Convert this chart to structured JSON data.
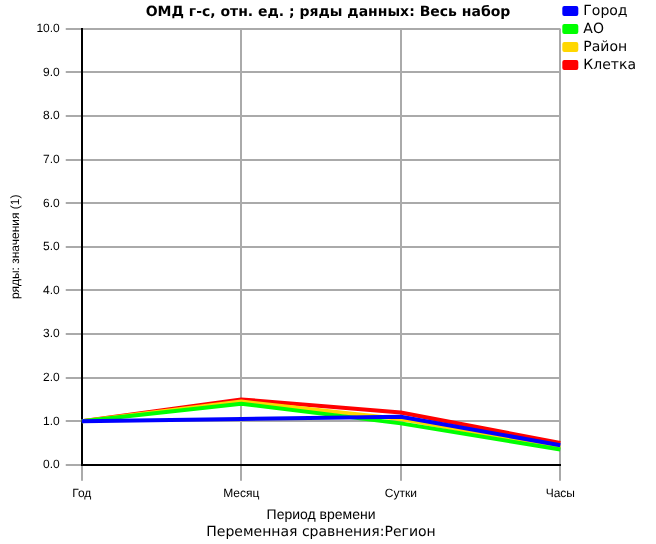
{
  "chart_data": {
    "type": "line",
    "title": "ОМД г-с, отн. ед. ; ряды данных: Весь набор",
    "xlabel": "Период времени",
    "ylabel": "ряды: значения (1)",
    "annotations": [
      "Переменная сравнения:Регион"
    ],
    "categories": [
      "Год",
      "Месяц",
      "Сутки",
      "Часы"
    ],
    "series": [
      {
        "name": "Город",
        "color": "#0000ff",
        "values": [
          1.0,
          1.05,
          1.1,
          0.45
        ]
      },
      {
        "name": "АО",
        "color": "#00ff00",
        "values": [
          1.0,
          1.4,
          0.95,
          0.35
        ]
      },
      {
        "name": "Район",
        "color": "#ffd700",
        "values": [
          1.0,
          1.45,
          1.05,
          0.4
        ]
      },
      {
        "name": "Клетка",
        "color": "#ff0000",
        "values": [
          1.0,
          1.5,
          1.2,
          0.5
        ]
      }
    ],
    "ylim": [
      0,
      10
    ],
    "yticks": [
      {
        "value": 0,
        "label": "0.0"
      },
      {
        "value": 1,
        "label": "1.0"
      },
      {
        "value": 2,
        "label": "2.0"
      },
      {
        "value": 3,
        "label": "3.0"
      },
      {
        "value": 4,
        "label": "4.0"
      },
      {
        "value": 5,
        "label": "5.0"
      },
      {
        "value": 6,
        "label": "6.0"
      },
      {
        "value": 7,
        "label": "7.0"
      },
      {
        "value": 8,
        "label": "8.0"
      },
      {
        "value": 9,
        "label": "9.0"
      },
      {
        "value": 10,
        "label": "10.0"
      }
    ],
    "grid": true,
    "legend": "top right",
    "marker": "none",
    "line_style": "solid"
  }
}
